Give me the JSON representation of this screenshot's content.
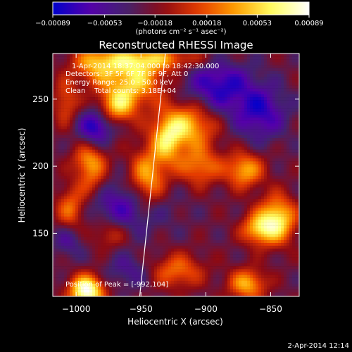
{
  "chart_data": {
    "type": "heatmap",
    "title": "Reconstructed RHESSI Image",
    "xlabel": "Heliocentric X (arcsec)",
    "ylabel": "Heliocentric Y (arcsec)",
    "xlim": [
      -1018,
      -828
    ],
    "ylim": [
      103,
      284
    ],
    "x_ticks": [
      -1000,
      -950,
      -900,
      -850
    ],
    "x_tick_labels": [
      "−1000",
      "−950",
      "−900",
      "−850"
    ],
    "y_ticks": [
      150,
      200,
      250
    ],
    "y_tick_labels": [
      "150",
      "200",
      "250"
    ],
    "colorbar": {
      "ticks": [
        -0.00089,
        -0.00053,
        -0.00018,
        0.00018,
        0.00053,
        0.00089
      ],
      "tick_labels": [
        "−0.00089",
        "−0.00053",
        "−0.00018",
        "0.00018",
        "0.00053",
        "0.00089"
      ],
      "range": [
        -0.00089,
        0.00089
      ],
      "unit_label": "(photons cm⁻² s⁻¹ asec⁻²)",
      "colors": [
        "#0000cc",
        "#5500aa",
        "#44226e",
        "#8c0a14",
        "#e63c00",
        "#ffa000",
        "#ffff64",
        "#ffffff"
      ]
    },
    "annotations": {
      "time_range": "1-Apr-2014 18:37:04.000 to 18:42:30.000",
      "detectors": "Detectors: 3F 5F 6F 7F 8F 9F, Att 0",
      "energy": "Energy Range: 25.0 - 50.0 keV",
      "method": "Clean    Total counts: 3.18E+04",
      "peak": "Position of Peak = [-992,104]"
    },
    "limb_line": {
      "points": [
        [
          -931,
          286
        ],
        [
          -951,
          103
        ]
      ]
    },
    "emission_sources": [
      {
        "x": -992,
        "y": 107,
        "sx": 9,
        "sy": 8,
        "amp": 1.3
      },
      {
        "x": -955,
        "y": 265,
        "sx": 16,
        "sy": 13,
        "amp": 0.85
      },
      {
        "x": -968,
        "y": 245,
        "sx": 10,
        "sy": 9,
        "amp": 0.75
      },
      {
        "x": -915,
        "y": 230,
        "sx": 15,
        "sy": 12,
        "amp": 0.85
      },
      {
        "x": -930,
        "y": 218,
        "sx": 8,
        "sy": 12,
        "amp": 0.65
      },
      {
        "x": -945,
        "y": 190,
        "sx": 10,
        "sy": 16,
        "amp": 0.8
      },
      {
        "x": -990,
        "y": 205,
        "sx": 9,
        "sy": 8,
        "amp": 0.55
      },
      {
        "x": -1004,
        "y": 168,
        "sx": 8,
        "sy": 12,
        "amp": 0.6
      },
      {
        "x": -988,
        "y": 190,
        "sx": 8,
        "sy": 10,
        "amp": 0.45
      },
      {
        "x": -905,
        "y": 200,
        "sx": 12,
        "sy": 10,
        "amp": 0.6
      },
      {
        "x": -870,
        "y": 197,
        "sx": 10,
        "sy": 9,
        "amp": 0.75
      },
      {
        "x": -845,
        "y": 160,
        "sx": 10,
        "sy": 12,
        "amp": 1.0
      },
      {
        "x": -860,
        "y": 153,
        "sx": 9,
        "sy": 8,
        "amp": 0.7
      },
      {
        "x": -868,
        "y": 112,
        "sx": 10,
        "sy": 8,
        "amp": 0.75
      },
      {
        "x": -922,
        "y": 122,
        "sx": 14,
        "sy": 9,
        "amp": 0.55
      },
      {
        "x": -975,
        "y": 150,
        "sx": 10,
        "sy": 8,
        "amp": 0.4
      },
      {
        "x": -942,
        "y": 280,
        "sx": 30,
        "sy": 6,
        "amp": 0.6
      },
      {
        "x": -985,
        "y": 275,
        "sx": 12,
        "sy": 10,
        "amp": 0.6
      },
      {
        "x": -960,
        "y": 170,
        "sx": 22,
        "sy": 14,
        "amp": -0.5
      },
      {
        "x": -985,
        "y": 230,
        "sx": 9,
        "sy": 9,
        "amp": -0.65
      },
      {
        "x": -890,
        "y": 260,
        "sx": 18,
        "sy": 14,
        "amp": -0.6
      },
      {
        "x": -858,
        "y": 240,
        "sx": 14,
        "sy": 14,
        "amp": -0.55
      },
      {
        "x": -1006,
        "y": 145,
        "sx": 8,
        "sy": 9,
        "amp": -0.35
      },
      {
        "x": -960,
        "y": 122,
        "sx": 12,
        "sy": 9,
        "amp": -0.3
      },
      {
        "x": -1008,
        "y": 248,
        "sx": 7,
        "sy": 12,
        "amp": 0.45
      }
    ]
  },
  "footer": {
    "timestamp": "2-Apr-2014 12:14"
  }
}
